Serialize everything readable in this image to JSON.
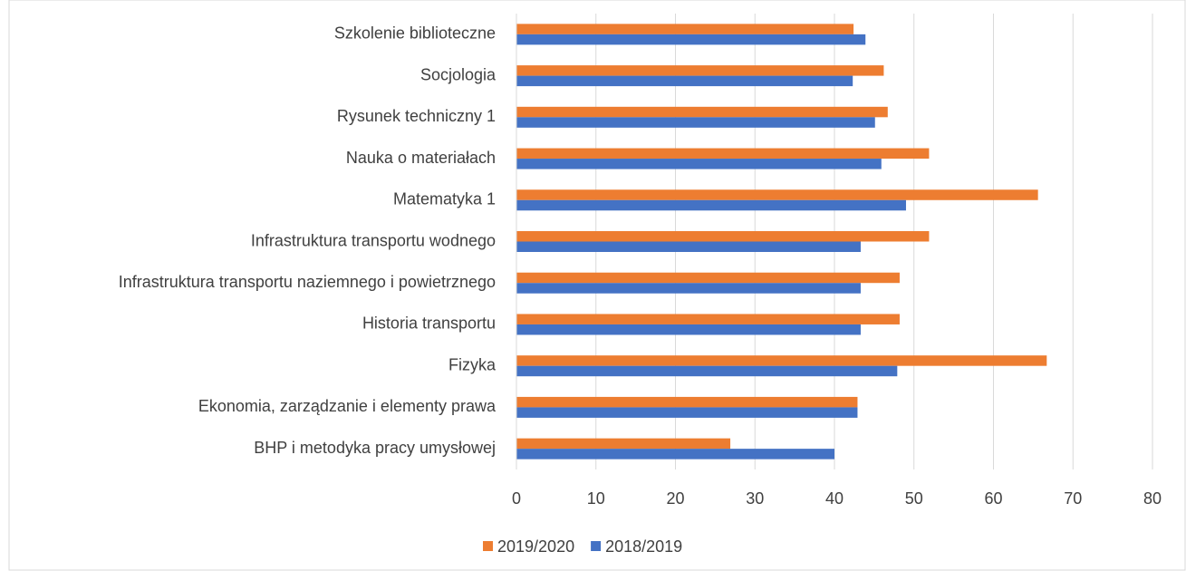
{
  "chart_data": {
    "type": "bar",
    "orientation": "horizontal",
    "categories": [
      "Szkolenie biblioteczne",
      "Socjologia",
      "Rysunek techniczny 1",
      "Nauka o materiałach",
      "Matematyka 1",
      "Infrastruktura transportu wodnego",
      "Infrastruktura transportu naziemnego i powietrznego",
      "Historia transportu",
      "Fizyka",
      "Ekonomia, zarządzanie i elementy prawa",
      "BHP i metodyka pracy umysłowej"
    ],
    "series": [
      {
        "name": "2019/2020",
        "color": "#ed7d31",
        "values": [
          42.4,
          46.2,
          46.7,
          51.9,
          65.6,
          51.9,
          48.2,
          48.2,
          66.7,
          42.9,
          26.9
        ]
      },
      {
        "name": "2018/2019",
        "color": "#4472c4",
        "values": [
          43.9,
          42.3,
          45.1,
          45.9,
          49.0,
          43.3,
          43.3,
          43.3,
          47.9,
          42.9,
          40.0
        ]
      }
    ],
    "xlim": [
      0,
      80
    ],
    "xticks": [
      0,
      10,
      20,
      30,
      40,
      50,
      60,
      70,
      80
    ],
    "grid": true,
    "legend": "bottom"
  }
}
